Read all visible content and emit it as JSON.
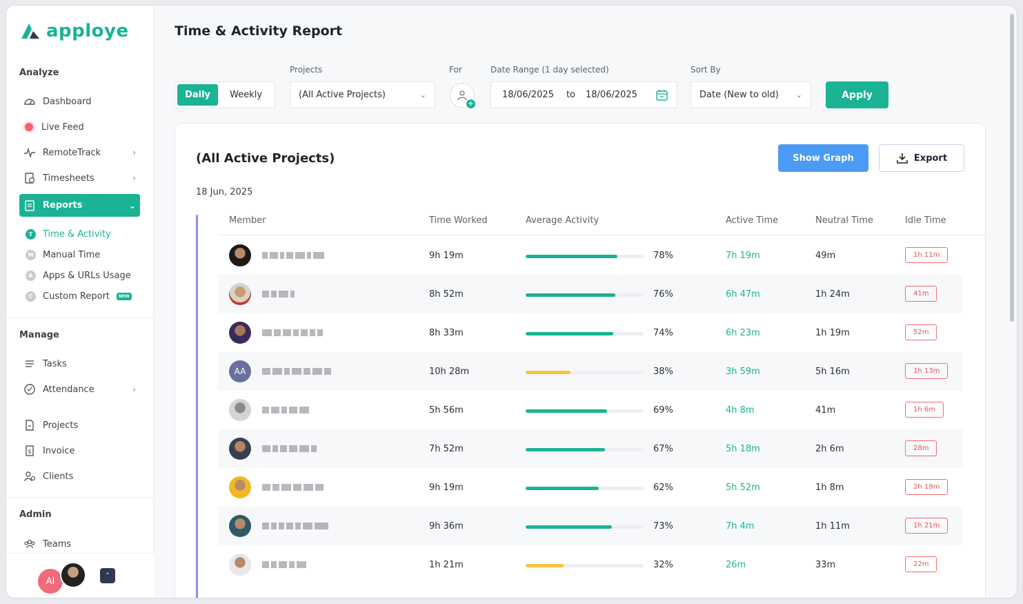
{
  "app": {
    "logo": "apploye"
  },
  "sidebar": {
    "analyze_title": "Analyze",
    "manage_title": "Manage",
    "admin_title": "Admin",
    "items": {
      "dashboard": "Dashboard",
      "live_feed": "Live Feed",
      "remotetrack": "RemoteTrack",
      "timesheets": "Timesheets",
      "reports": "Reports",
      "tasks": "Tasks",
      "attendance": "Attendance",
      "projects": "Projects",
      "invoice": "Invoice",
      "clients": "Clients",
      "teams": "Teams"
    },
    "report_sub": [
      {
        "letter": "T",
        "label": "Time & Activity"
      },
      {
        "letter": "M",
        "label": "Manual Time"
      },
      {
        "letter": "A",
        "label": "Apps & URLs Usage"
      },
      {
        "letter": "C",
        "label": "Custom Report",
        "badge": "NEW"
      }
    ],
    "footer": {
      "user_initials": "AI"
    }
  },
  "page": {
    "title": "Time & Activity Report"
  },
  "filters": {
    "view_daily": "Daily",
    "view_weekly": "Weekly",
    "projects_label": "Projects",
    "projects_value": "(All Active Projects)",
    "for_label": "For",
    "date_range_label": "Date Range (1 day selected)",
    "date_from": "18/06/2025",
    "date_to_word": "to",
    "date_to": "18/06/2025",
    "sort_label": "Sort By",
    "sort_value": "Date (New to old)",
    "apply": "Apply"
  },
  "report": {
    "title": "(All Active Projects)",
    "show_graph": "Show Graph",
    "export": "Export",
    "date": "18 Jun, 2025",
    "columns": [
      "Member",
      "Time Worked",
      "Average Activity",
      "Active Time",
      "Neutral Time",
      "Idle Time"
    ],
    "rows": [
      {
        "initials": "",
        "worked": "9h 19m",
        "activity": "78%",
        "active": "7h 19m",
        "neutral": "49m",
        "idle": "1h 11m"
      },
      {
        "initials": "",
        "worked": "8h 52m",
        "activity": "76%",
        "active": "6h 47m",
        "neutral": "1h 24m",
        "idle": "41m"
      },
      {
        "initials": "",
        "worked": "8h 33m",
        "activity": "74%",
        "active": "6h 23m",
        "neutral": "1h 19m",
        "idle": "52m"
      },
      {
        "initials": "AA",
        "worked": "10h 28m",
        "activity": "38%",
        "active": "3h 59m",
        "neutral": "5h 16m",
        "idle": "1h 13m"
      },
      {
        "initials": "",
        "worked": "5h 56m",
        "activity": "69%",
        "active": "4h 8m",
        "neutral": "41m",
        "idle": "1h 6m"
      },
      {
        "initials": "",
        "worked": "7h 52m",
        "activity": "67%",
        "active": "5h 18m",
        "neutral": "2h 6m",
        "idle": "28m"
      },
      {
        "initials": "",
        "worked": "9h 19m",
        "activity": "62%",
        "active": "5h 52m",
        "neutral": "1h 8m",
        "idle": "2h 19m"
      },
      {
        "initials": "",
        "worked": "9h 36m",
        "activity": "73%",
        "active": "7h 4m",
        "neutral": "1h 11m",
        "idle": "1h 21m"
      },
      {
        "initials": "",
        "worked": "1h 21m",
        "activity": "32%",
        "active": "26m",
        "neutral": "33m",
        "idle": "22m"
      }
    ],
    "activity_fraction": [
      0.78,
      0.76,
      0.74,
      0.38,
      0.69,
      0.67,
      0.62,
      0.73,
      0.32
    ],
    "colors": {
      "high": "#1ab394",
      "low": "#f5c542"
    }
  }
}
